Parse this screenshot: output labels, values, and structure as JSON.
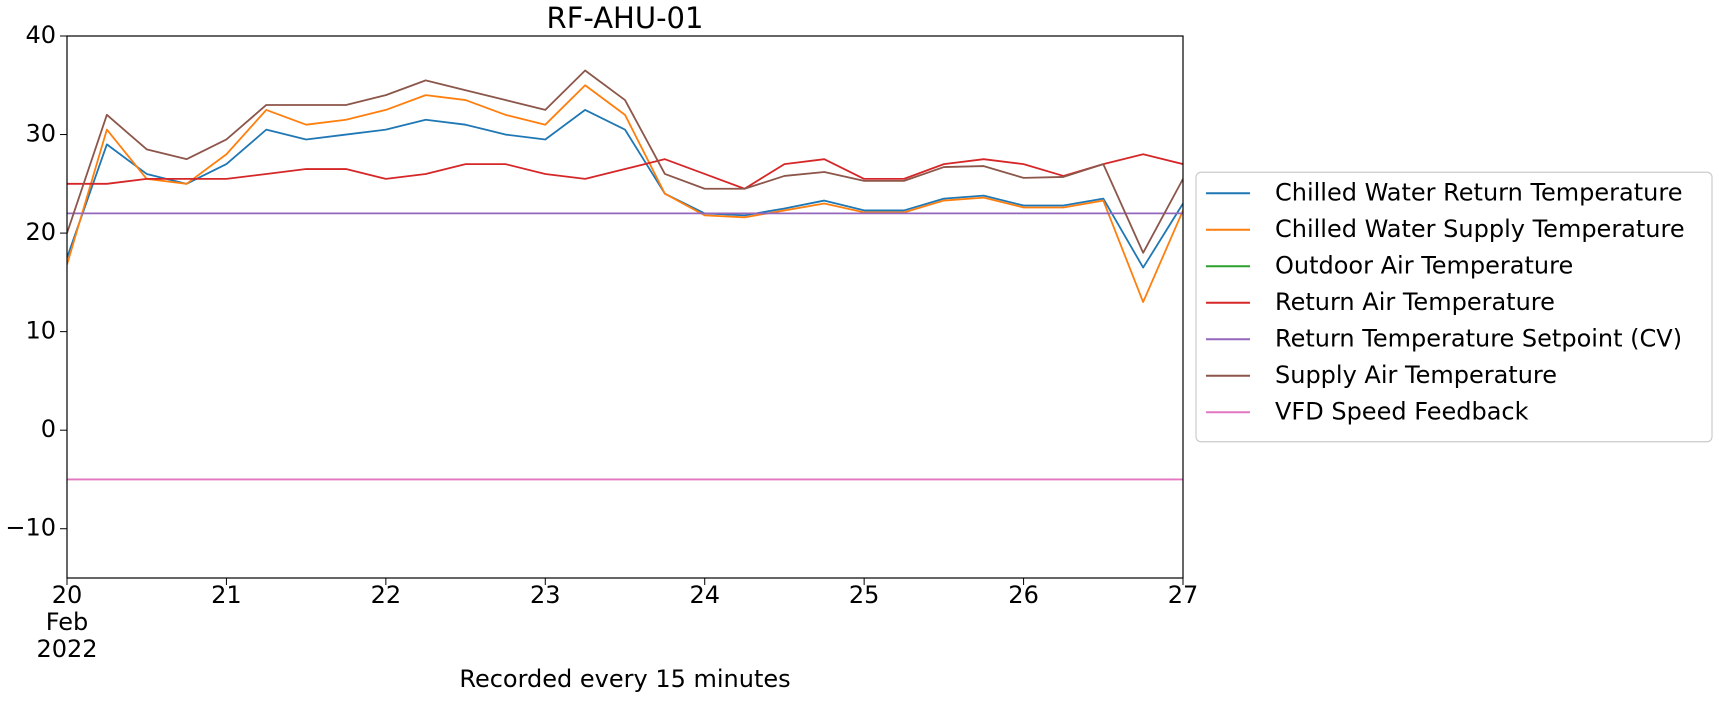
{
  "chart_data": {
    "type": "line",
    "title": "RF-AHU-01",
    "x_label": "Recorded every 15 minutes",
    "x": [
      20,
      20.25,
      20.5,
      20.75,
      21,
      21.25,
      21.5,
      21.75,
      22,
      22.25,
      22.5,
      22.75,
      23,
      23.25,
      23.5,
      23.75,
      24,
      24.25,
      24.5,
      24.75,
      25,
      25.25,
      25.5,
      25.75,
      26,
      26.25,
      26.5,
      26.75,
      27
    ],
    "xlim": [
      20,
      27
    ],
    "xticks": [
      {
        "value": 20,
        "label": "20\nFeb\n2022"
      },
      21,
      22,
      23,
      24,
      25,
      26,
      27
    ],
    "ylim": [
      -15,
      40
    ],
    "yticks": [
      {
        "value": -10,
        "label": "−10"
      },
      0,
      10,
      20,
      30,
      40
    ],
    "legend": "right",
    "series": [
      {
        "name": "Chilled Water Return Temperature",
        "color": "#1f77b4",
        "values": [
          17.5,
          29,
          26,
          25,
          27,
          30.5,
          29.5,
          30,
          30.5,
          31.5,
          31,
          30,
          29.5,
          32.5,
          30.5,
          24,
          22,
          21.8,
          22.5,
          23.3,
          22.3,
          22.3,
          23.5,
          23.8,
          22.8,
          22.8,
          23.5,
          16.5,
          23
        ]
      },
      {
        "name": "Chilled Water Supply Temperature",
        "color": "#ff7f0e",
        "values": [
          16.8,
          30.5,
          25.5,
          25,
          28,
          32.5,
          31,
          31.5,
          32.5,
          34,
          33.5,
          32,
          31,
          35,
          32,
          24,
          21.8,
          21.6,
          22.3,
          23,
          22.1,
          22.1,
          23.3,
          23.6,
          22.6,
          22.6,
          23.3,
          13,
          22.3
        ]
      },
      {
        "name": "Outdoor Air Temperature",
        "color": "#2ca02c",
        "values": [
          null,
          null,
          null,
          null,
          null,
          null,
          null,
          null,
          null,
          null,
          null,
          null,
          null,
          null,
          null,
          null,
          null,
          null,
          null,
          null,
          null,
          null,
          null,
          null,
          null,
          null,
          null,
          null,
          null
        ]
      },
      {
        "name": "Return Air Temperature",
        "color": "#d62728",
        "values": [
          25,
          25,
          25.5,
          25.5,
          25.5,
          26,
          26.5,
          26.5,
          25.5,
          26,
          27,
          27,
          26,
          25.5,
          26.5,
          27.5,
          26,
          24.5,
          27,
          27.5,
          25.5,
          25.5,
          27,
          27.5,
          27,
          25.8,
          27,
          28,
          27
        ]
      },
      {
        "name": "Return Temperature Setpoint (CV)",
        "color": "#9467bd",
        "values": [
          22,
          22,
          22,
          22,
          22,
          22,
          22,
          22,
          22,
          22,
          22,
          22,
          22,
          22,
          22,
          22,
          22,
          22,
          22,
          22,
          22,
          22,
          22,
          22,
          22,
          22,
          22,
          22,
          22
        ]
      },
      {
        "name": "Supply Air Temperature",
        "color": "#8c564b",
        "values": [
          20,
          32,
          28.5,
          27.5,
          29.5,
          33,
          33,
          33,
          34,
          35.5,
          34.5,
          33.5,
          32.5,
          36.5,
          33.5,
          26,
          24.5,
          24.5,
          25.8,
          26.2,
          25.3,
          25.3,
          26.7,
          26.8,
          25.6,
          25.7,
          27,
          18,
          25.5
        ]
      },
      {
        "name": "VFD Speed Feedback",
        "color": "#e377c2",
        "values": [
          -5,
          -5,
          -5,
          -5,
          -5,
          -5,
          -5,
          -5,
          -5,
          -5,
          -5,
          -5,
          -5,
          -5,
          -5,
          -5,
          -5,
          -5,
          -5,
          -5,
          -5,
          -5,
          -5,
          -5,
          -5,
          -5,
          -5,
          -5,
          -5
        ]
      }
    ]
  }
}
